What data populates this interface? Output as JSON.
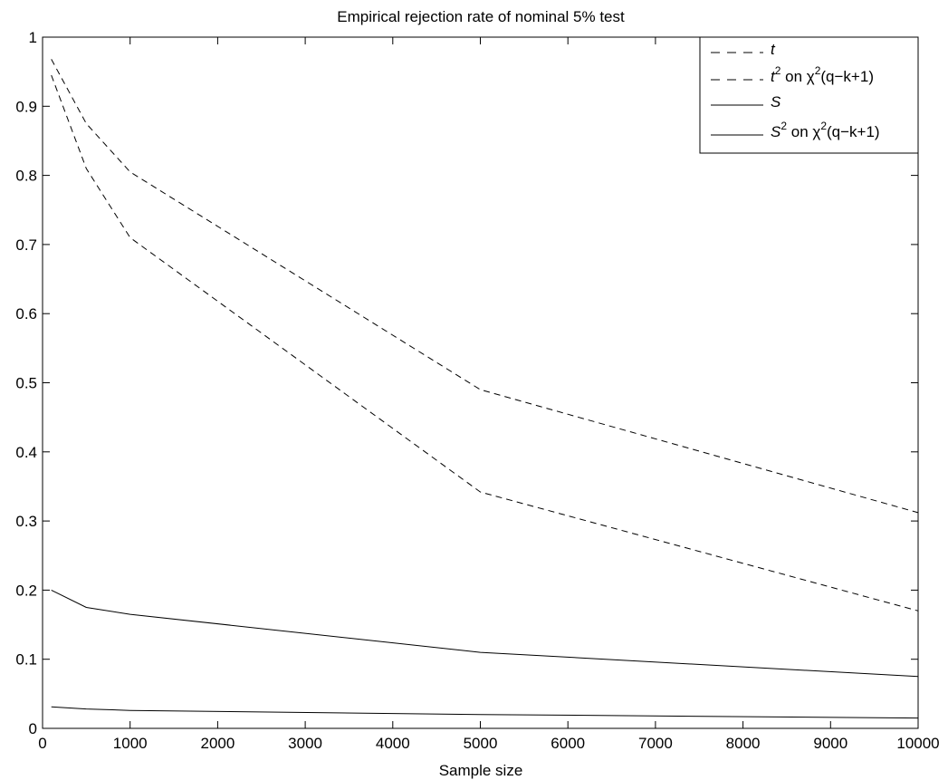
{
  "chart_data": {
    "type": "line",
    "title": "Empirical rejection rate of nominal 5% test",
    "xlabel": "Sample size",
    "ylabel": "",
    "xlim": [
      0,
      10000
    ],
    "ylim": [
      0,
      1
    ],
    "xticks": [
      0,
      1000,
      2000,
      3000,
      4000,
      5000,
      6000,
      7000,
      8000,
      9000,
      10000
    ],
    "yticks": [
      0,
      0.1,
      0.2,
      0.3,
      0.4,
      0.5,
      0.6,
      0.7,
      0.8,
      0.9,
      1
    ],
    "grid": false,
    "legend_position": "top-right",
    "series": [
      {
        "name": "t",
        "style": "dashed",
        "color": "#000000",
        "x": [
          100,
          500,
          1000,
          5000,
          10000
        ],
        "y": [
          0.968,
          0.875,
          0.805,
          0.49,
          0.312
        ]
      },
      {
        "name": "t^2 on χ^2(q−k+1)",
        "style": "dashed",
        "color": "#000000",
        "x": [
          100,
          500,
          1000,
          5000,
          10000
        ],
        "y": [
          0.945,
          0.81,
          0.71,
          0.342,
          0.17
        ]
      },
      {
        "name": "S",
        "style": "solid",
        "color": "#000000",
        "x": [
          100,
          500,
          1000,
          5000,
          10000
        ],
        "y": [
          0.2,
          0.175,
          0.165,
          0.11,
          0.075
        ]
      },
      {
        "name": "S^2 on χ^2(q−k+1)",
        "style": "solid",
        "color": "#000000",
        "x": [
          100,
          500,
          1000,
          5000,
          10000
        ],
        "y": [
          0.031,
          0.028,
          0.026,
          0.02,
          0.015
        ]
      }
    ],
    "legend_labels": [
      {
        "base": "t",
        "sup": "",
        "rest": ""
      },
      {
        "base": "t",
        "sup": "2",
        "rest": " on χ",
        "sup2": "2",
        "rest2": "(q−k+1)"
      },
      {
        "base": "S",
        "sup": "",
        "rest": ""
      },
      {
        "base": "S",
        "sup": "2",
        "rest": " on χ",
        "sup2": "2",
        "rest2": "(q−k+1)"
      }
    ]
  }
}
